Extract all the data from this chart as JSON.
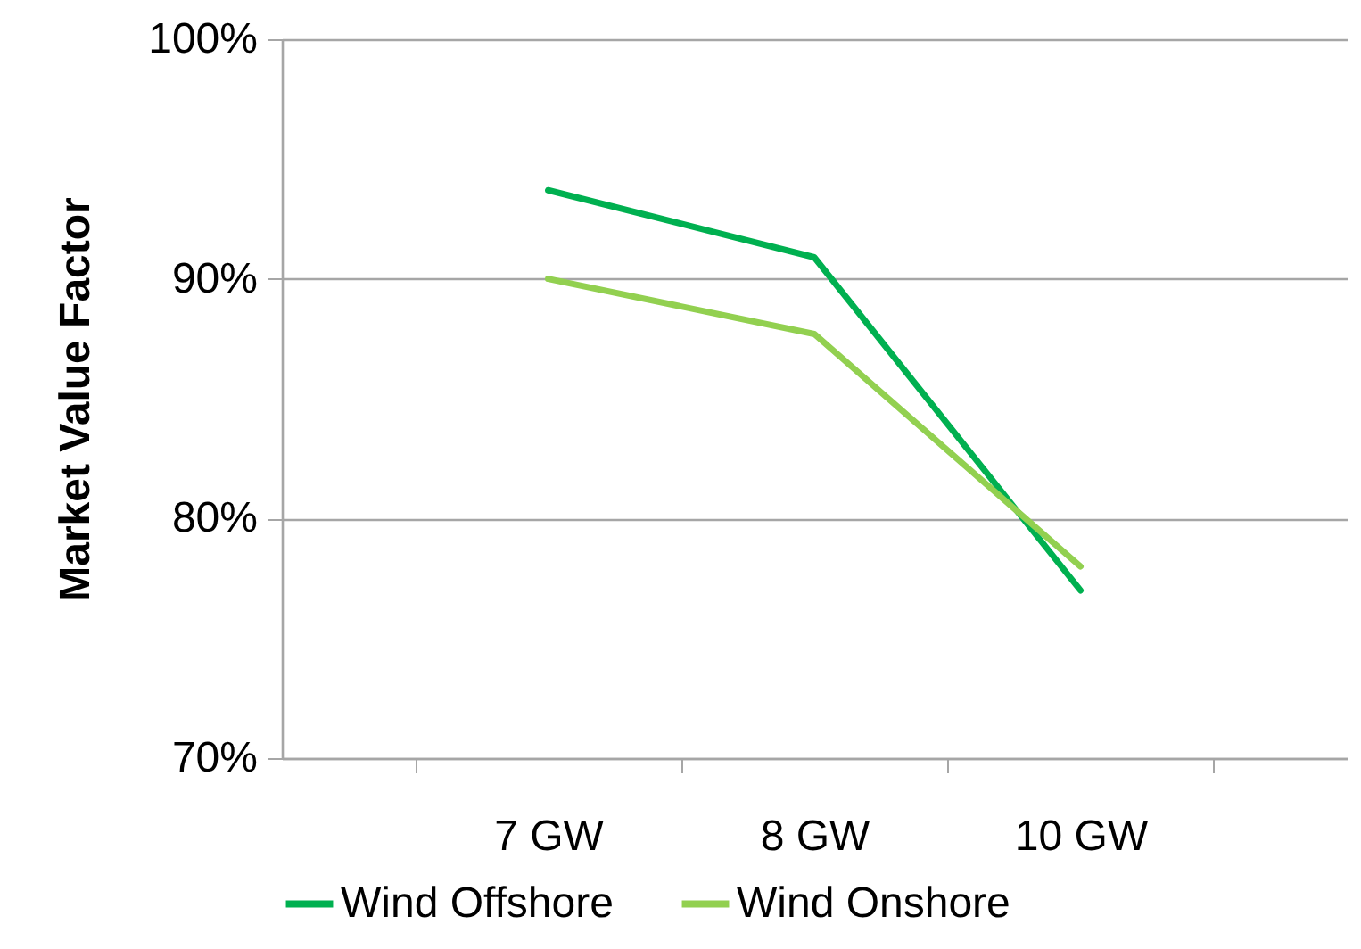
{
  "chart_data": {
    "type": "line",
    "ylabel": "Market Value Factor",
    "categories": [
      "7 GW",
      "8 GW",
      "10 GW"
    ],
    "series": [
      {
        "name": "Wind Offshore",
        "color": "#00b050",
        "values": [
          93.7,
          90.9,
          77.0
        ]
      },
      {
        "name": "Wind Onshore",
        "color": "#92d050",
        "values": [
          90.0,
          87.7,
          78.0
        ]
      }
    ],
    "ylim": [
      70,
      100
    ],
    "yticks": [
      {
        "value": 70,
        "label": "70%"
      },
      {
        "value": 80,
        "label": "80%"
      },
      {
        "value": 90,
        "label": "90%"
      },
      {
        "value": 100,
        "label": "100%"
      }
    ],
    "grid": "y",
    "legend": "bottom"
  }
}
